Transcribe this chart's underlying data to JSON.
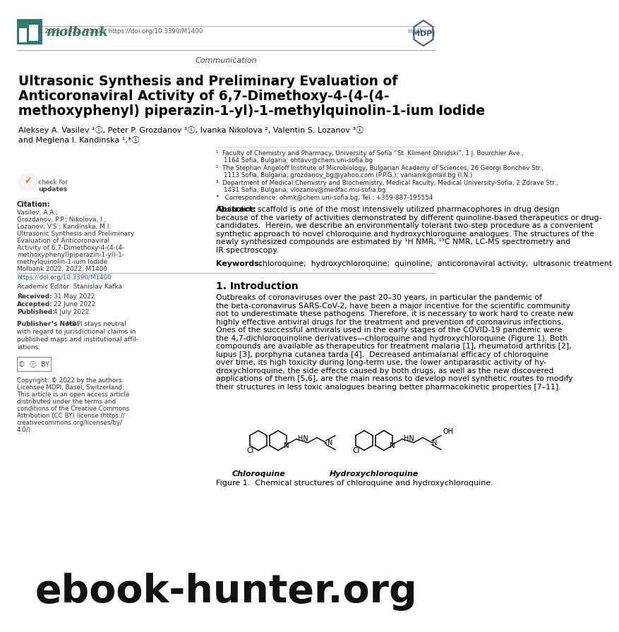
{
  "bg_color": "#ffffff",
  "teal_color": "#2d7a6e",
  "mdpi_color": "#4a5a7a",
  "journal_name": "molbank",
  "article_type": "Communication",
  "title_lines": [
    "Ultrasonic Synthesis and Preliminary Evaluation of",
    "Anticoronaviral Activity of 6,7-Dimethoxy-4-(4-(4-",
    "methoxyphenyl) piperazin-1-yl)-1-methylquinolin-1-ium Iodide"
  ],
  "author_line1": "Aleksey A. Vasilev ¹ⓘ, Peter P. Grozdanov ²ⓘ, Ivanka Nikolova ², Valentin S. Lozanov ³ⓘ",
  "author_line2": "and Meglena I. Kandinska ¹,*ⓘ",
  "affil_lines": [
    "¹  Faculty of Chemistry and Pharmacy, University of Sofia “St. Kliment Ohridski”, 1 J. Bourchier Ave.,",
    "    1164 Sofia, Bulgaria; ohtavv@chem.uni-sofia.bg",
    "²  The Stephan Angeloff Institute of Microbiology, Bulgarian Academy of Sciences, 26 Georgi Bonchev Str.,",
    "    1113 Sofia, Bulgaria; grozdanov_bg@yahoo.com (P.P.G.); vanianik@mail.bg (I.N.)",
    "³  Department of Medical Chemistry and Biochemistry, Medical Faculty, Medical University-Sofia, 2 Zdrave Str.,",
    "    1431 Sofia, Bulgaria; vlozanov@medfac.mu-sofia.bg",
    "*   Correspondence: ohmk@chem.uni-sofia.bg; Tel.: +359-887-195554"
  ],
  "abstract_label": "Abstract:",
  "abstract_body": "Quinoline scaffold is one of the most intensively utilized pharmacophores in drug design because of the variety of activities demonstrated by different quinoline-based therapeutics or drug-candidates.  Herein, we describe an environmentally tolerant two-step procedure as a convenient synthetic approach to novel chloroquine and hydroxychloroquine analogues. The structures of the newly synthesized compounds are estimated by ¹H NMR, ¹³C NMR, LC-MS spectrometry and IR spectroscopy.",
  "keywords_label": "Keywords:",
  "keywords_body": "  chloroquine;  hydroxychloroquine;  quinoline;  anticoronaviral activity;  ultrasonic treatment",
  "section1": "1. Introduction",
  "intro_lines": [
    "Outbreaks of coronaviruses over the past 20–30 years, in particular the pandemic of",
    "the beta-coronavirus SARS-CoV-2, have been a major incentive for the scientific community",
    "not to underestimate these pathogens. Therefore, it is necessary to work hard to create new",
    "highly effective antiviral drugs for the treatment and prevention of coronavirus infections.",
    "Ones of the successful antivirals used in the early stages of the COVID-19 pandemic were",
    "the 4,7-dichloroquinoline derivatives—chloroquine and hydroxychloroquine (Figure 1). Both",
    "compounds are available as therapeutics for treatment malaria [1], rheumatoid arthritis [2],",
    "lupus [3], porphyria cutanea tarda [4].  Decreased antimalarial efficacy of chloroquine",
    "over time, its high toxicity during long-term use, the lower antiparasitic activity of hy-",
    "droxychloroquine, the side effects caused by both drugs, as well as the new discovered",
    "applications of them [5,6], are the main reasons to develop novel synthetic routes to modify",
    "their structures in less toxic analogues bearing better pharmacokinetic properties [7–11]."
  ],
  "citation_label": "Citation:",
  "citation_lines": [
    "Vasilev, A.A.;",
    "Grozdanov, P.P.; Nikolova, I.;",
    "Lozanov, V.S.; Kandinska, M.I.",
    "Ultrasonic Synthesis and Preliminary",
    "Evaluation of Anticoronaviral",
    "Activity of 6,7-Dimethoxy-4-(4-(4-",
    "methoxyphenyl)piperazin-1-yl)-1-",
    "methylquinolin-1-ium Iodide.",
    "Molbank 2022, 2022, M1400."
  ],
  "doi": "https://doi.org/10.3390/M1400",
  "academic_editor": "Academic Editor: Stanislav Kafka",
  "received": "31 May 2022",
  "accepted": "22 June 2022",
  "published": "4 July 2022",
  "publisher_note_label": "Publisher’s Note:",
  "publisher_note_lines": [
    "MDPI stays neutral",
    "with regard to jurisdictional claims in",
    "published maps and institutional affil-",
    "iations."
  ],
  "copyright_lines": [
    "Copyright: © 2022 by the authors.",
    "Licensee MDPI, Basel, Switzerland.",
    "This article is an open access article",
    "distributed under the terms and",
    "conditions of the Creative Commons",
    "Attribution (CC BY) license (https://",
    "creativecommons.org/licenses/by/",
    "4.0/)."
  ],
  "fig_caption": "Figure 1.  Chemical structures of chloroquine and hydroxychloroquine.",
  "chloroquine_label": "Chloroquine",
  "hcq_label": "Hydroxychloroquine",
  "bottom_left": "Molbank 2022, 2022, M1400. https://doi.org/10.3390/M1400",
  "bottom_right": "molbank",
  "ebook_text": "ebook-hunter.org"
}
